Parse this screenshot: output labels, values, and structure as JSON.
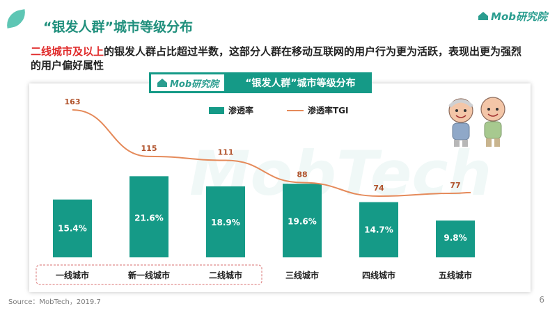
{
  "header": {
    "title": "“银发人群”城市等级分布",
    "brand": "Mob研究院"
  },
  "subtitle": {
    "highlight": "二线城市及以上",
    "rest": "的银发人群占比超过半数，这部分人群在移动互联网的用户行为更为活跃，表现出更为强烈的用户偏好属性"
  },
  "card": {
    "brand": "Mob研究院",
    "title": "“银发人群”城市等级分布",
    "watermark": "MobTech"
  },
  "colors": {
    "bar": "#159a87",
    "line": "#e58a5a",
    "brand": "#2a9d8f",
    "highlight": "#e02a2a",
    "category_box": "#e08c8c"
  },
  "chart_data": {
    "type": "bar",
    "categories": [
      "一线城市",
      "新一线城市",
      "二线城市",
      "三线城市",
      "四线城市",
      "五线城市"
    ],
    "series": [
      {
        "name": "渗透率",
        "type": "bar",
        "values": [
          15.4,
          21.6,
          18.9,
          19.6,
          14.7,
          9.8
        ],
        "labels": [
          "15.4%",
          "21.6%",
          "18.9%",
          "19.6%",
          "14.7%",
          "9.8%"
        ]
      },
      {
        "name": "渗透率TGI",
        "type": "line",
        "values": [
          163,
          115,
          111,
          88,
          74,
          77
        ],
        "labels": [
          "163",
          "115",
          "111",
          "88",
          "74",
          "77"
        ]
      }
    ],
    "legend_position": "top",
    "grid": false,
    "highlighted_categories": [
      "一线城市",
      "新一线城市",
      "二线城市"
    ]
  },
  "footer": {
    "source": "Source：MobTech，2019.7",
    "page": "6"
  }
}
